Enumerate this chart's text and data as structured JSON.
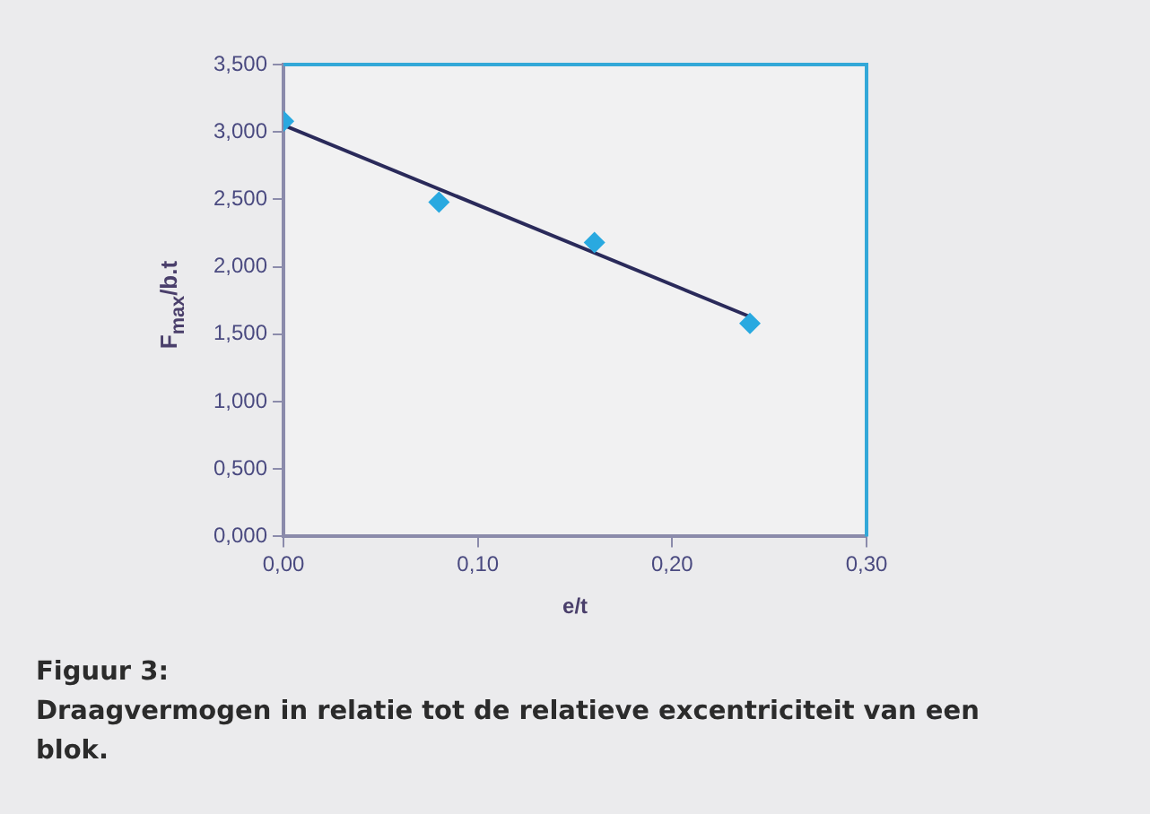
{
  "chart_data": {
    "type": "scatter",
    "title": "Figuur 3:",
    "subtitle": "Draagvermogen in relatie tot de relatieve excentriciteit van een blok.",
    "xlabel": "e/t",
    "ylabel": "F$_{max}$/b.t",
    "xlim": [
      0,
      0.3
    ],
    "xticks": [
      {
        "value": 0,
        "label": "0,00"
      },
      {
        "value": 0.1,
        "label": "0,10"
      },
      {
        "value": 0.2,
        "label": "0,20"
      },
      {
        "value": 0.3,
        "label": "0,30"
      }
    ],
    "ylim": [
      0,
      3.5
    ],
    "yticks": [
      {
        "value": 0,
        "label": "0,000"
      },
      {
        "value": 0.5,
        "label": "0,500"
      },
      {
        "value": 1,
        "label": "1,000"
      },
      {
        "value": 1.5,
        "label": "1,500"
      },
      {
        "value": 2,
        "label": "2,000"
      },
      {
        "value": 2.5,
        "label": "2,500"
      },
      {
        "value": 3,
        "label": "3,000"
      },
      {
        "value": 3.5,
        "label": "3,500"
      }
    ],
    "series": [
      {
        "type": "scatter",
        "color": "#29a9e0",
        "marker": "diamond",
        "x": [
          0,
          0.08,
          0.16,
          0.24
        ],
        "values": [
          3.08,
          2.48,
          2.18,
          1.58
        ]
      },
      {
        "type": "line",
        "color": "#2a2a5a",
        "marker": "none",
        "x": [
          0,
          0.24
        ],
        "values": [
          3.05,
          1.63
        ]
      }
    ]
  }
}
